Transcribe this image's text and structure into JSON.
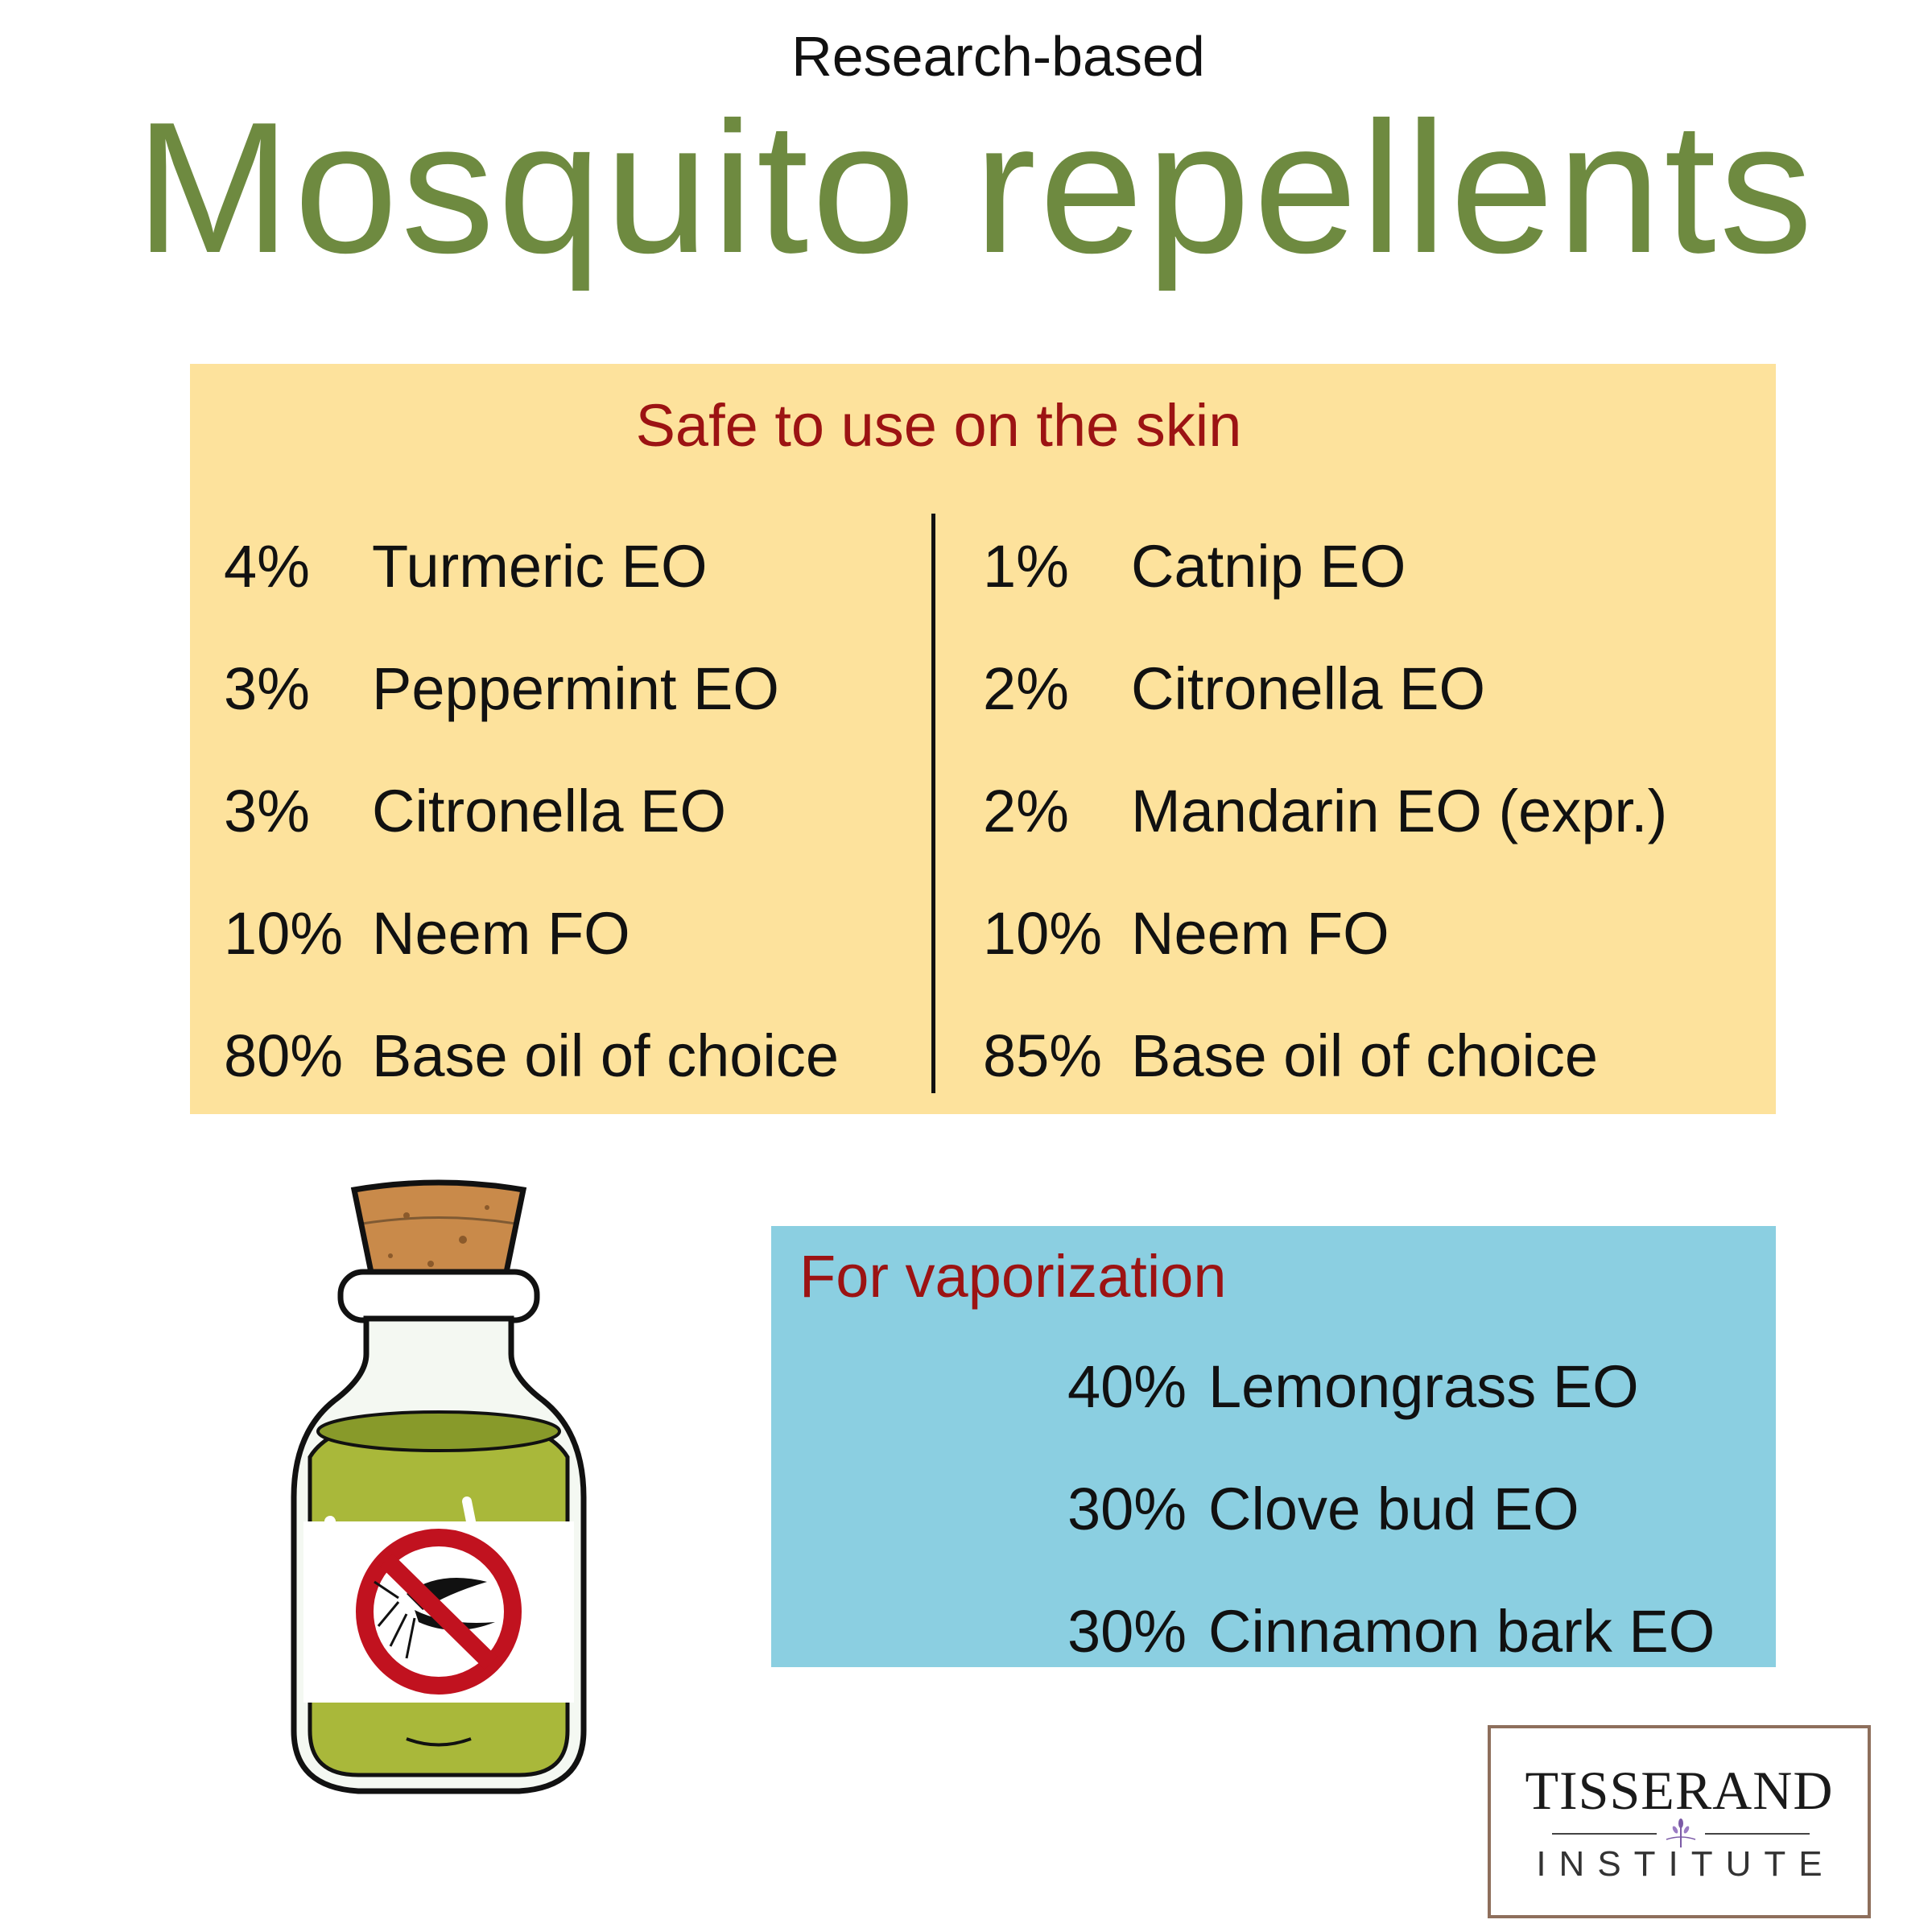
{
  "header": {
    "subtitle": "Research-based",
    "title": "Mosquito repellents"
  },
  "skin": {
    "heading": "Safe to use on the skin",
    "left": [
      {
        "pct": "4%",
        "name": "Turmeric EO"
      },
      {
        "pct": "3%",
        "name": "Peppermint EO"
      },
      {
        "pct": "3%",
        "name": "Citronella EO"
      },
      {
        "pct": "10%",
        "name": "Neem FO"
      },
      {
        "pct": "80%",
        "name": "Base oil of choice"
      }
    ],
    "right": [
      {
        "pct": "1%",
        "name": "Catnip EO"
      },
      {
        "pct": "2%",
        "name": "Citronella EO"
      },
      {
        "pct": "2%",
        "name": "Mandarin EO (expr.)"
      },
      {
        "pct": "10%",
        "name": "Neem FO"
      },
      {
        "pct": "85%",
        "name": "Base oil of choice"
      }
    ]
  },
  "vapor": {
    "heading": "For vaporization",
    "items": [
      {
        "pct": "40%",
        "name": "Lemongrass EO"
      },
      {
        "pct": "30%",
        "name": "Clove bud EO"
      },
      {
        "pct": "30%",
        "name": "Cinnamon bark EO"
      }
    ]
  },
  "logo": {
    "name": "TISSERAND",
    "sub": "INSTITUTE"
  },
  "colors": {
    "title_green": "#6e8a40",
    "heading_red": "#9c1313",
    "skin_panel": "#fde29c",
    "vapor_panel": "#8bcfe1",
    "logo_border": "#8e6f5c"
  },
  "icons": {
    "bottle": "oil-bottle-icon",
    "no_mosquito": "no-mosquito-icon",
    "logo_mark": "lavender-sprig-icon"
  }
}
